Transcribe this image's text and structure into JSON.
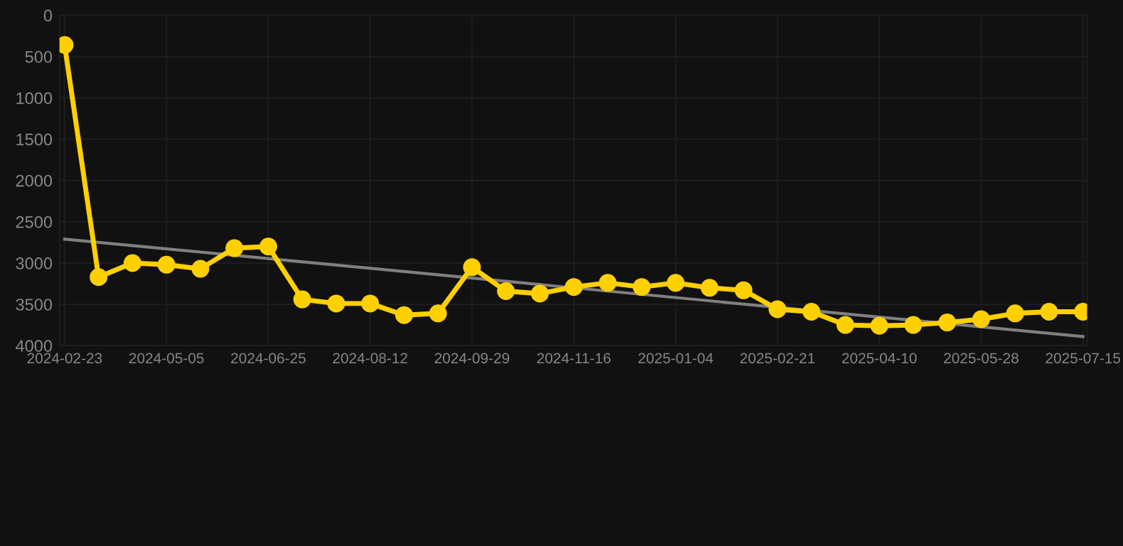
{
  "chart_data": {
    "type": "line",
    "categories": [
      "2024-02-23",
      null,
      null,
      "2024-05-05",
      null,
      null,
      "2024-06-25",
      null,
      null,
      "2024-08-12",
      null,
      null,
      "2024-09-29",
      null,
      null,
      "2024-11-16",
      null,
      null,
      "2025-01-04",
      null,
      null,
      "2025-02-21",
      null,
      null,
      "2025-04-10",
      null,
      null,
      "2025-05-28",
      null,
      null,
      "2025-07-15"
    ],
    "series": [
      {
        "color": "#ffd000",
        "marker": "circle",
        "values": [
          360,
          3170,
          3000,
          3020,
          3070,
          2820,
          2800,
          3440,
          3490,
          3490,
          3630,
          3610,
          3050,
          3340,
          3370,
          3290,
          3240,
          3290,
          3240,
          3300,
          3330,
          3560,
          3590,
          3750,
          3760,
          3750,
          3720,
          3680,
          3610,
          3590,
          3590
        ]
      },
      {
        "color": "#808080",
        "marker": "none",
        "values": [
          2710,
          null,
          null,
          null,
          null,
          null,
          null,
          null,
          null,
          null,
          null,
          null,
          null,
          null,
          null,
          null,
          null,
          null,
          null,
          null,
          null,
          null,
          null,
          null,
          null,
          null,
          null,
          null,
          null,
          null,
          3890
        ]
      }
    ],
    "ylim": [
      4000,
      0
    ],
    "yticks": [
      0,
      500,
      1000,
      1500,
      2000,
      2500,
      3000,
      3500,
      4000
    ],
    "grid": true
  }
}
